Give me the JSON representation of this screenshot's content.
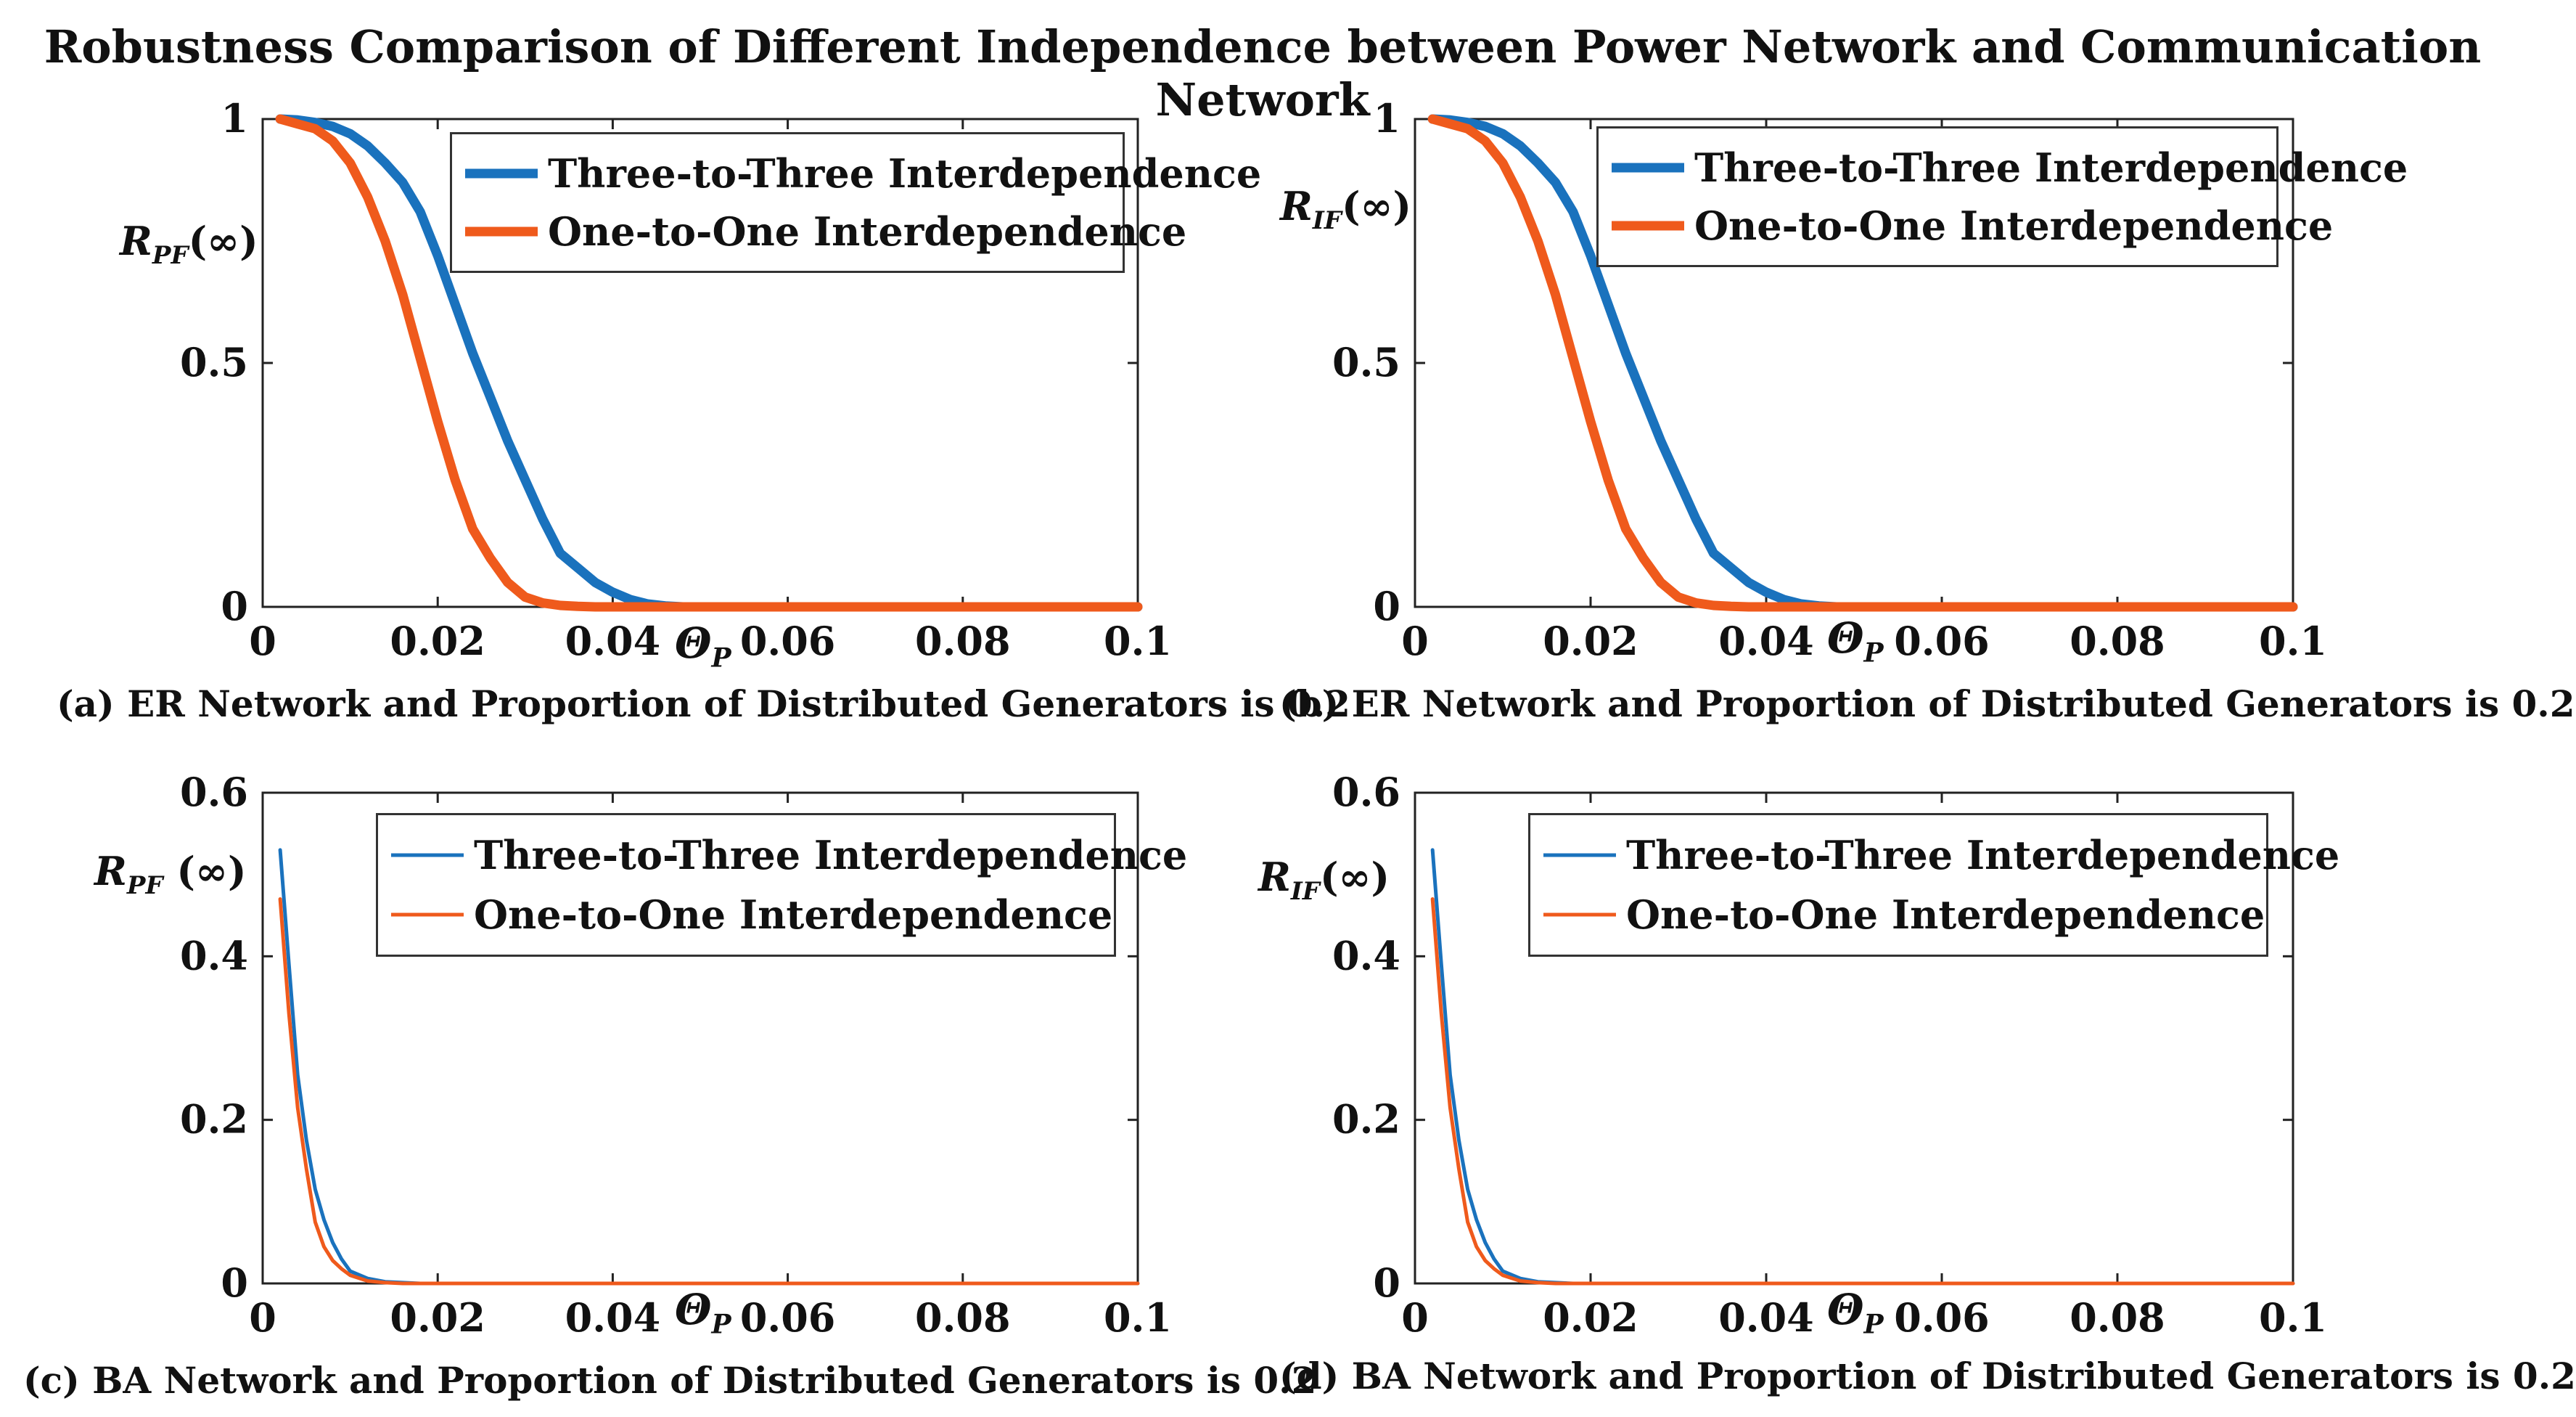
{
  "title": "Robustness Comparison of Different Independence between Power Network and Communication Network",
  "colors": {
    "three": "#1a72bd",
    "one": "#ef5a1c",
    "axis": "#222222"
  },
  "chart_data": [
    {
      "id": "a",
      "type": "line",
      "caption": "(a) ER Network and Proportion of Distributed Generators is 0.2",
      "ylabel": {
        "main": "R",
        "sub": "PF",
        "suffix": "(∞)"
      },
      "xlabel": {
        "main": "Θ",
        "sub": "P"
      },
      "xlim": [
        0,
        0.1
      ],
      "ylim": [
        0,
        1
      ],
      "xticks": [
        0,
        0.02,
        0.04,
        0.06,
        0.08,
        0.1
      ],
      "xtick_labels": [
        "0",
        "0.02",
        "0.04",
        "0.06",
        "0.08",
        "0.1"
      ],
      "yticks": [
        0,
        0.5,
        1
      ],
      "ytick_labels": [
        "0",
        "0.5",
        "1"
      ],
      "line_width": "thick",
      "legend": [
        "Three-to-Three Interdependence",
        "One-to-One Interdependence"
      ],
      "x": [
        0.002,
        0.004,
        0.006,
        0.008,
        0.01,
        0.012,
        0.014,
        0.016,
        0.018,
        0.02,
        0.022,
        0.024,
        0.026,
        0.028,
        0.03,
        0.032,
        0.034,
        0.036,
        0.038,
        0.04,
        0.042,
        0.044,
        0.046,
        0.048,
        0.05,
        0.06,
        0.07,
        0.08,
        0.09,
        0.1
      ],
      "series": [
        {
          "name": "Three-to-Three Interdependence",
          "values": [
            1.0,
            0.998,
            0.993,
            0.985,
            0.97,
            0.945,
            0.91,
            0.87,
            0.81,
            0.72,
            0.62,
            0.52,
            0.43,
            0.34,
            0.26,
            0.18,
            0.11,
            0.08,
            0.05,
            0.03,
            0.015,
            0.006,
            0.002,
            0.0,
            0.0,
            0.0,
            0.0,
            0.0,
            0.0,
            0.0
          ]
        },
        {
          "name": "One-to-One Interdependence",
          "values": [
            1.0,
            0.99,
            0.98,
            0.955,
            0.91,
            0.84,
            0.75,
            0.64,
            0.51,
            0.38,
            0.26,
            0.16,
            0.1,
            0.05,
            0.02,
            0.008,
            0.003,
            0.001,
            0.0,
            0.0,
            0.0,
            0.0,
            0.0,
            0.0,
            0.0,
            0.0,
            0.0,
            0.0,
            0.0,
            0.0
          ]
        }
      ]
    },
    {
      "id": "b",
      "type": "line",
      "caption": "(b) ER Network and Proportion of Distributed Generators is 0.2",
      "ylabel": {
        "main": "R",
        "sub": "IF",
        "suffix": "(∞)"
      },
      "xlabel": {
        "main": "Θ",
        "sub": "P"
      },
      "xlim": [
        0,
        0.1
      ],
      "ylim": [
        0,
        1
      ],
      "xticks": [
        0,
        0.02,
        0.04,
        0.06,
        0.08,
        0.1
      ],
      "xtick_labels": [
        "0",
        "0.02",
        "0.04",
        "0.06",
        "0.08",
        "0.1"
      ],
      "yticks": [
        0,
        0.5,
        1
      ],
      "ytick_labels": [
        "0",
        "0.5",
        "1"
      ],
      "line_width": "thick",
      "legend": [
        "Three-to-Three Interdependence",
        "One-to-One Interdependence"
      ],
      "x": [
        0.002,
        0.004,
        0.006,
        0.008,
        0.01,
        0.012,
        0.014,
        0.016,
        0.018,
        0.02,
        0.022,
        0.024,
        0.026,
        0.028,
        0.03,
        0.032,
        0.034,
        0.036,
        0.038,
        0.04,
        0.042,
        0.044,
        0.046,
        0.048,
        0.05,
        0.06,
        0.07,
        0.08,
        0.09,
        0.1
      ],
      "series": [
        {
          "name": "Three-to-Three Interdependence",
          "values": [
            1.0,
            0.998,
            0.993,
            0.985,
            0.97,
            0.945,
            0.91,
            0.87,
            0.81,
            0.72,
            0.62,
            0.52,
            0.43,
            0.34,
            0.26,
            0.18,
            0.11,
            0.08,
            0.05,
            0.03,
            0.015,
            0.006,
            0.002,
            0.0,
            0.0,
            0.0,
            0.0,
            0.0,
            0.0,
            0.0
          ]
        },
        {
          "name": "One-to-One Interdependence",
          "values": [
            1.0,
            0.99,
            0.98,
            0.955,
            0.91,
            0.84,
            0.75,
            0.64,
            0.51,
            0.38,
            0.26,
            0.16,
            0.1,
            0.05,
            0.02,
            0.008,
            0.003,
            0.001,
            0.0,
            0.0,
            0.0,
            0.0,
            0.0,
            0.0,
            0.0,
            0.0,
            0.0,
            0.0,
            0.0,
            0.0
          ]
        }
      ]
    },
    {
      "id": "c",
      "type": "line",
      "caption": "(c)  BA Network and Proportion of Distributed Generators is 0.2",
      "ylabel": {
        "main": "R",
        "sub": "PF",
        "suffix": " (∞)"
      },
      "xlabel": {
        "main": "Θ",
        "sub": "P"
      },
      "xlim": [
        0,
        0.1
      ],
      "ylim": [
        0,
        0.6
      ],
      "xticks": [
        0,
        0.02,
        0.04,
        0.06,
        0.08,
        0.1
      ],
      "xtick_labels": [
        "0",
        "0.02",
        "0.04",
        "0.06",
        "0.08",
        "0.1"
      ],
      "yticks": [
        0,
        0.2,
        0.4,
        0.6
      ],
      "ytick_labels": [
        "0",
        "0.2",
        "0.4",
        "0.6"
      ],
      "line_width": "thin",
      "legend": [
        "Three-to-Three Interdependence",
        "One-to-One Interdependence"
      ],
      "x": [
        0.002,
        0.003,
        0.004,
        0.005,
        0.006,
        0.007,
        0.008,
        0.009,
        0.01,
        0.012,
        0.014,
        0.016,
        0.018,
        0.02,
        0.04,
        0.06,
        0.08,
        0.1
      ],
      "series": [
        {
          "name": "Three-to-Three Interdependence",
          "values": [
            0.53,
            0.39,
            0.255,
            0.175,
            0.115,
            0.078,
            0.05,
            0.03,
            0.015,
            0.006,
            0.002,
            0.001,
            0.0,
            0.0,
            0.0,
            0.0,
            0.0,
            0.0
          ]
        },
        {
          "name": "One-to-One Interdependence",
          "values": [
            0.47,
            0.33,
            0.215,
            0.14,
            0.075,
            0.045,
            0.028,
            0.018,
            0.01,
            0.003,
            0.001,
            0.0,
            0.0,
            0.0,
            0.0,
            0.0,
            0.0,
            0.0
          ]
        }
      ]
    },
    {
      "id": "d",
      "type": "line",
      "caption": "(d)  BA Network and Proportion of Distributed Generators is 0.2",
      "ylabel": {
        "main": "R",
        "sub": "IF",
        "suffix": "(∞)"
      },
      "xlabel": {
        "main": "Θ",
        "sub": "P"
      },
      "xlim": [
        0,
        0.1
      ],
      "ylim": [
        0,
        0.6
      ],
      "xticks": [
        0,
        0.02,
        0.04,
        0.06,
        0.08,
        0.1
      ],
      "xtick_labels": [
        "0",
        "0.02",
        "0.04",
        "0.06",
        "0.08",
        "0.1"
      ],
      "yticks": [
        0,
        0.2,
        0.4,
        0.6
      ],
      "ytick_labels": [
        "0",
        "0.2",
        "0.4",
        "0.6"
      ],
      "line_width": "thin",
      "legend": [
        "Three-to-Three Interdependence",
        "One-to-One Interdependence"
      ],
      "x": [
        0.002,
        0.003,
        0.004,
        0.005,
        0.006,
        0.007,
        0.008,
        0.009,
        0.01,
        0.012,
        0.014,
        0.016,
        0.018,
        0.02,
        0.04,
        0.06,
        0.08,
        0.1
      ],
      "series": [
        {
          "name": "Three-to-Three Interdependence",
          "values": [
            0.53,
            0.39,
            0.255,
            0.175,
            0.115,
            0.078,
            0.05,
            0.03,
            0.015,
            0.006,
            0.002,
            0.001,
            0.0,
            0.0,
            0.0,
            0.0,
            0.0,
            0.0
          ]
        },
        {
          "name": "One-to-One Interdependence",
          "values": [
            0.47,
            0.33,
            0.215,
            0.14,
            0.075,
            0.045,
            0.028,
            0.018,
            0.01,
            0.003,
            0.001,
            0.0,
            0.0,
            0.0,
            0.0,
            0.0,
            0.0,
            0.0
          ]
        }
      ]
    }
  ]
}
